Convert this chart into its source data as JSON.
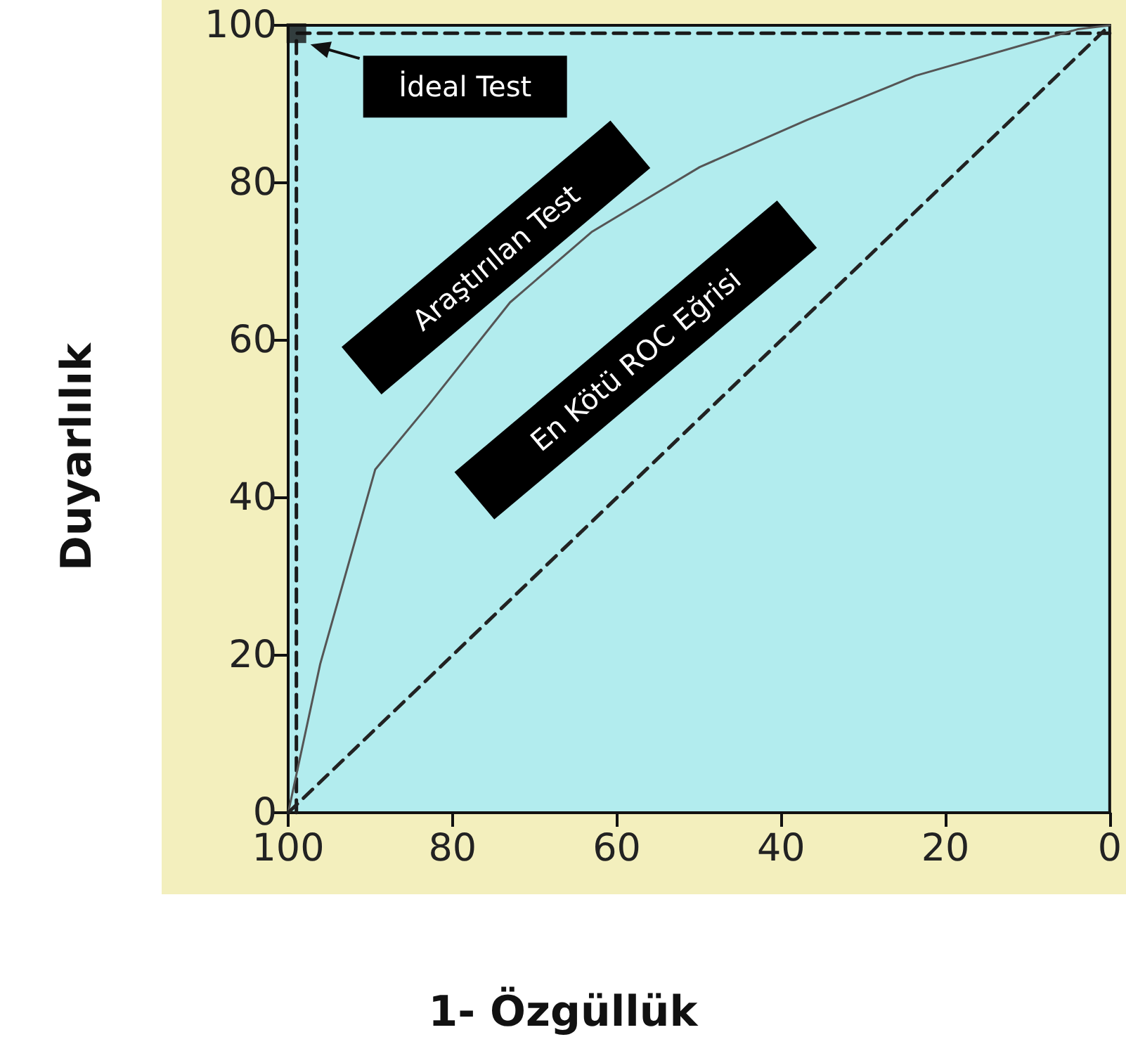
{
  "chart_data": {
    "type": "line",
    "xlabel": "1- Özgüllük",
    "ylabel": "Duyarlılık",
    "xlim": [
      100,
      0
    ],
    "xticks": [
      100,
      80,
      60,
      40,
      20,
      0
    ],
    "ylim": [
      0,
      100
    ],
    "yticks": [
      0,
      20,
      40,
      60,
      80,
      100
    ],
    "grid": false,
    "legend": false,
    "series": [
      {
        "name": "İdeal Test",
        "color": "#1a1a1a",
        "line_style": "dashed",
        "marker": "none",
        "x": [
          99,
          99,
          0
        ],
        "values": [
          0,
          99,
          99
        ]
      },
      {
        "name": "Araştırılan Test",
        "color": "#555555",
        "line_style": "solid",
        "marker": "none",
        "x": [
          100,
          96.1,
          89.4,
          82.9,
          73,
          63,
          49.9,
          36.8,
          23.6,
          3.9,
          0
        ],
        "values": [
          0,
          18.9,
          43.6,
          51.8,
          64.8,
          73.8,
          82,
          88,
          93.6,
          99.5,
          100
        ]
      },
      {
        "name": "En Kötü ROC Eğrisi",
        "color": "#222222",
        "line_style": "dashed",
        "marker": "none",
        "x": [
          100,
          0
        ],
        "values": [
          0,
          100
        ]
      },
      {
        "type": "scatter",
        "color": "#111111",
        "marker": "square",
        "x": [
          99
        ],
        "values": [
          99
        ]
      }
    ]
  }
}
